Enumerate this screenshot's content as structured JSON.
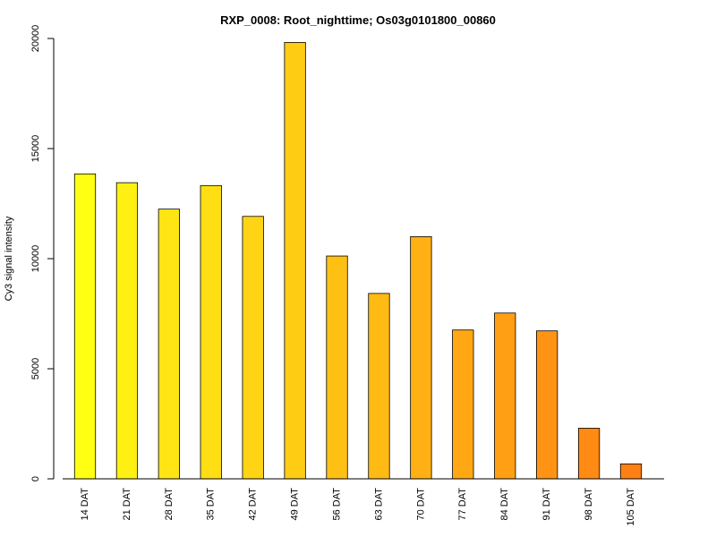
{
  "chart_data": {
    "type": "bar",
    "title": "RXP_0008: Root_nighttime; Os03g0101800_00860",
    "xlabel": "",
    "ylabel": "Cy3 signal intensity",
    "ylim": [
      0,
      20000
    ],
    "y_ticks": [
      0,
      5000,
      10000,
      15000,
      20000
    ],
    "grid": false,
    "legend": "none",
    "categories": [
      "14 DAT",
      "21 DAT",
      "28 DAT",
      "35 DAT",
      "42 DAT",
      "49 DAT",
      "56 DAT",
      "63 DAT",
      "70 DAT",
      "77 DAT",
      "84 DAT",
      "91 DAT",
      "98 DAT",
      "105 DAT"
    ],
    "values": [
      13850,
      13450,
      12250,
      13320,
      11920,
      19820,
      10120,
      8420,
      11000,
      6760,
      7530,
      6720,
      2300,
      680
    ],
    "colors": [
      "#ffff14",
      "#fff014",
      "#ffe514",
      "#ffde14",
      "#ffd414",
      "#ffcc14",
      "#ffc014",
      "#ffba14",
      "#ffb014",
      "#ffa814",
      "#ffa014",
      "#ff9414",
      "#ff8a14",
      "#ff8014"
    ],
    "bar_stroke": "#000000",
    "axis_color": "#000000"
  }
}
